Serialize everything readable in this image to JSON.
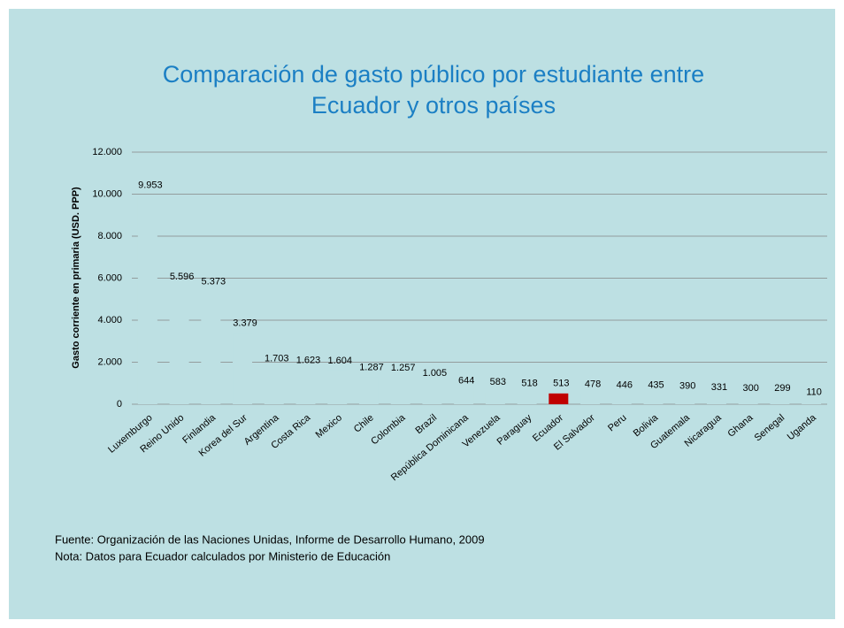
{
  "chart_data": {
    "type": "bar",
    "title": [
      "Comparación de gasto público por estudiante entre",
      "Ecuador y otros países"
    ],
    "y_label": "Gasto corriente en primaria (USD. PPP)",
    "categories": [
      "Luxemburgo",
      "Reino Unido",
      "Finlandia",
      "Korea del Sur",
      "Argentina",
      "Costa Rica",
      "Mexico",
      "Chile",
      "Colombia",
      "Brazil",
      "República Dominicana",
      "Venezuela",
      "Paraguay",
      "Ecuador",
      "El Salvador",
      "Peru",
      "Bolivia",
      "Guatemala",
      "Nicaragua",
      "Ghana",
      "Senegal",
      "Uganda"
    ],
    "values": [
      9953,
      5596,
      5373,
      3379,
      1703,
      1623,
      1604,
      1287,
      1257,
      1005,
      644,
      583,
      518,
      513,
      478,
      446,
      435,
      390,
      331,
      300,
      299,
      110
    ],
    "value_labels": [
      "9.953",
      "5.596",
      "5.373",
      "3.379",
      "1.703",
      "1.623",
      "1.604",
      "1.287",
      "1.257",
      "1.005",
      "644",
      "583",
      "518",
      "513",
      "478",
      "446",
      "435",
      "390",
      "331",
      "300",
      "299",
      "110"
    ],
    "colors": [
      "#bde0e3",
      "#bde0e3",
      "#bde0e3",
      "#bde0e3",
      "#bde0e3",
      "#bde0e3",
      "#bde0e3",
      "#bde0e3",
      "#bde0e3",
      "#bde0e3",
      "#bde0e3",
      "#bde0e3",
      "#bde0e3",
      "#c00000",
      "#bde0e3",
      "#bde0e3",
      "#bde0e3",
      "#bde0e3",
      "#bde0e3",
      "#bde0e3",
      "#bde0e3",
      "#bde0e3"
    ],
    "ylim": [
      0,
      12000
    ],
    "yticks": [
      0,
      {
        "value": 2000,
        "label": "2.000"
      },
      {
        "value": 4000,
        "label": "4.000"
      },
      {
        "value": 6000,
        "label": "6.000"
      },
      {
        "value": 8000,
        "label": "8.000"
      },
      {
        "value": 10000,
        "label": "10.000"
      },
      {
        "value": 12000,
        "label": "12.000"
      }
    ],
    "grid": true,
    "notes": [
      "Fuente:  Organización de las Naciones Unidas, Informe de Desarrollo Humano, 2009",
      "Nota: Datos para Ecuador calculados por Ministerio de Educación"
    ]
  }
}
